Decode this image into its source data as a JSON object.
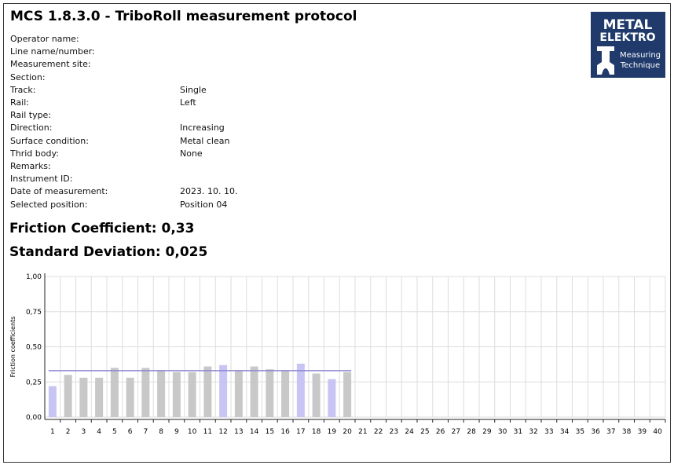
{
  "header": {
    "title": "MCS 1.8.3.0 - TriboRoll measurement protocol"
  },
  "logo": {
    "line1": "METAL",
    "line2": "ELEKTRO",
    "line3": "Measuring",
    "line4": "Technique"
  },
  "fields": [
    {
      "label": "Operator name:",
      "value": null
    },
    {
      "label": "Line name/number:",
      "value": null
    },
    {
      "label": "Measurement site:",
      "value": null
    },
    {
      "label": "Section:",
      "value": null
    },
    {
      "label": "Track:",
      "value": "Single"
    },
    {
      "label": "Rail:",
      "value": "Left"
    },
    {
      "label": "Rail type:",
      "value": null
    },
    {
      "label": "Direction:",
      "value": "Increasing"
    },
    {
      "label": "Surface condition:",
      "value": "Metal clean"
    },
    {
      "label": "Thrid body:",
      "value": "None"
    },
    {
      "label": "Remarks:",
      "value": null
    },
    {
      "label": "Instrument ID:",
      "value": null
    },
    {
      "label": "Date of measurement:",
      "value": "2023. 10. 10."
    },
    {
      "label": "Selected position:",
      "value": "Position 04"
    }
  ],
  "summary": [
    "Friction Coefficient: 0,33",
    "Standard Deviation: 0,025"
  ],
  "chart_data": {
    "type": "bar",
    "y_label": "Friction coefficients",
    "categories": [
      "1",
      "2",
      "3",
      "4",
      "5",
      "6",
      "7",
      "8",
      "9",
      "10",
      "11",
      "12",
      "13",
      "14",
      "15",
      "16",
      "17",
      "18",
      "19",
      "20",
      "21",
      "22",
      "23",
      "24",
      "25",
      "26",
      "27",
      "28",
      "29",
      "30",
      "31",
      "32",
      "33",
      "34",
      "35",
      "36",
      "37",
      "38",
      "39",
      "40"
    ],
    "values": [
      0.22,
      0.3,
      0.28,
      0.28,
      0.35,
      0.28,
      0.35,
      0.33,
      0.32,
      0.32,
      0.36,
      0.37,
      0.33,
      0.36,
      0.34,
      0.33,
      0.38,
      0.31,
      0.27,
      0.32,
      null,
      null,
      null,
      null,
      null,
      null,
      null,
      null,
      null,
      null,
      null,
      null,
      null,
      null,
      null,
      null,
      null,
      null,
      null,
      null
    ],
    "colors": [
      "#c8c4f4",
      "#c8c8c8",
      "#c8c8c8",
      "#c8c8c8",
      "#c8c8c8",
      "#c8c8c8",
      "#c8c8c8",
      "#c8c8c8",
      "#c8c8c8",
      "#c8c8c8",
      "#c8c8c8",
      "#c8c4f4",
      "#c8c8c8",
      "#c8c8c8",
      "#c8c8c8",
      "#c8c8c8",
      "#c8c4f4",
      "#c8c8c8",
      "#c8c4f4",
      "#c8c8c8",
      null,
      null,
      null,
      null,
      null,
      null,
      null,
      null,
      null,
      null,
      null,
      null,
      null,
      null,
      null,
      null,
      null,
      null,
      null,
      null
    ],
    "mean_line": 0.33,
    "mean_line_color": "#8c88d0",
    "ylim": [
      0,
      1
    ],
    "yticks": [
      {
        "value": 0,
        "label": "0,00"
      },
      {
        "value": 0.25,
        "label": "0,25"
      },
      {
        "value": 0.5,
        "label": "0,50"
      },
      {
        "value": 0.75,
        "label": "0,75"
      },
      {
        "value": 1,
        "label": "1,00"
      }
    ],
    "grid": true
  }
}
